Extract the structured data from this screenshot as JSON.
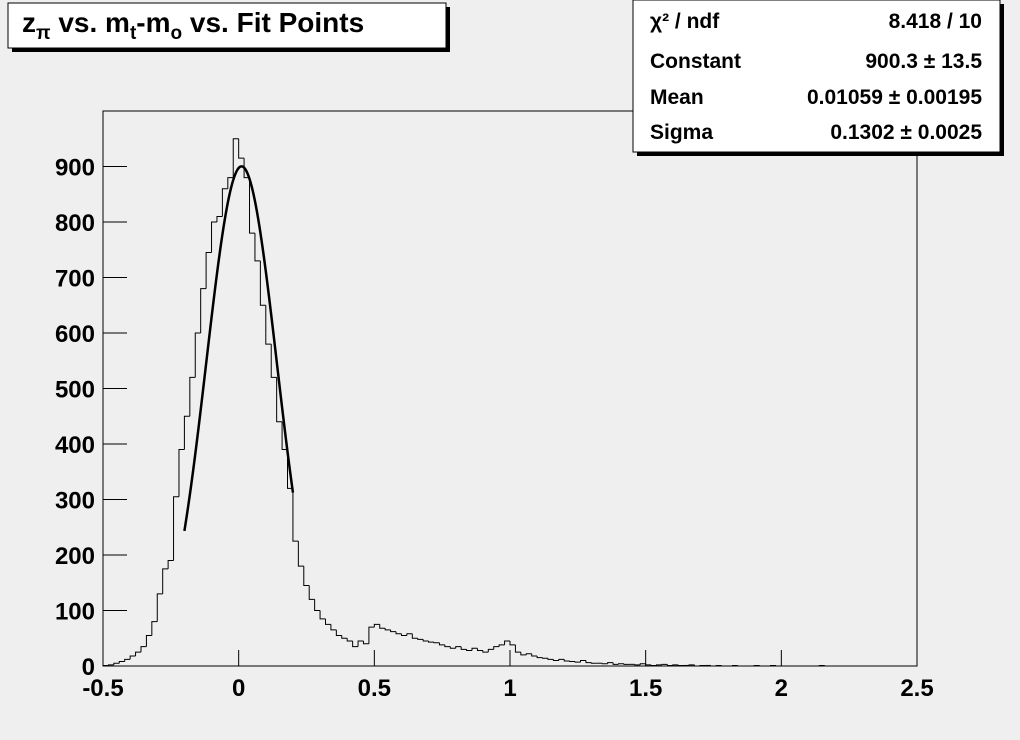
{
  "chart_data": {
    "type": "histogram",
    "title": [
      "z",
      "π",
      " vs. m",
      "t",
      "-m",
      "o",
      " vs. Fit Points"
    ],
    "xlim": [
      -0.5,
      2.5
    ],
    "ylim": [
      0,
      1000
    ],
    "xticks": [
      -0.5,
      0,
      0.5,
      1,
      1.5,
      2,
      2.5
    ],
    "yticks": [
      0,
      100,
      200,
      300,
      400,
      500,
      600,
      700,
      800,
      900
    ],
    "color": "#000000",
    "bins": [
      -0.5,
      -0.48,
      -0.46,
      -0.44,
      -0.42,
      -0.4,
      -0.38,
      -0.36,
      -0.34,
      -0.32,
      -0.3,
      -0.28,
      -0.26,
      -0.24,
      -0.22,
      -0.2,
      -0.18,
      -0.16,
      -0.14,
      -0.12,
      -0.1,
      -0.08,
      -0.06,
      -0.04,
      -0.02,
      0,
      0.02,
      0.04,
      0.06,
      0.08,
      0.1,
      0.12,
      0.14,
      0.16,
      0.18,
      0.2,
      0.22,
      0.24,
      0.26,
      0.28,
      0.3,
      0.32,
      0.34,
      0.36,
      0.38,
      0.4,
      0.42,
      0.44,
      0.46,
      0.48,
      0.5,
      0.52,
      0.54,
      0.56,
      0.58,
      0.6,
      0.62,
      0.64,
      0.66,
      0.68,
      0.7,
      0.72,
      0.74,
      0.76,
      0.78,
      0.8,
      0.82,
      0.84,
      0.86,
      0.88,
      0.9,
      0.92,
      0.94,
      0.96,
      0.98,
      1,
      1.02,
      1.04,
      1.06,
      1.08,
      1.1,
      1.12,
      1.14,
      1.16,
      1.18,
      1.2,
      1.22,
      1.24,
      1.26,
      1.28,
      1.3,
      1.32,
      1.34,
      1.36,
      1.38,
      1.4,
      1.42,
      1.44,
      1.46,
      1.48,
      1.5,
      1.52,
      1.54,
      1.56,
      1.58,
      1.6,
      1.62,
      1.64,
      1.66,
      1.68,
      1.7,
      1.72,
      1.74,
      1.76,
      1.78,
      1.8,
      1.82,
      1.84,
      1.86,
      1.88,
      1.9,
      1.92,
      1.94,
      1.96,
      1.98,
      2,
      2.02,
      2.04,
      2.06,
      2.08,
      2.1,
      2.12,
      2.14,
      2.16,
      2.18,
      2.2,
      2.22,
      2.24,
      2.26,
      2.28,
      2.3,
      2.32,
      2.34,
      2.36,
      2.38,
      2.4,
      2.42,
      2.44,
      2.46,
      2.48,
      2.5
    ],
    "values": [
      1,
      2,
      5,
      8,
      12,
      18,
      25,
      35,
      55,
      80,
      130,
      175,
      190,
      305,
      390,
      450,
      520,
      600,
      680,
      745,
      800,
      810,
      860,
      880,
      950,
      915,
      880,
      780,
      730,
      650,
      580,
      520,
      440,
      390,
      320,
      225,
      180,
      145,
      120,
      100,
      85,
      75,
      65,
      55,
      50,
      45,
      35,
      45,
      40,
      70,
      75,
      68,
      65,
      62,
      58,
      55,
      58,
      50,
      48,
      45,
      43,
      42,
      38,
      35,
      32,
      35,
      30,
      28,
      32,
      28,
      25,
      30,
      35,
      38,
      45,
      38,
      25,
      20,
      22,
      18,
      15,
      14,
      12,
      10,
      12,
      9,
      8,
      7,
      10,
      6,
      5,
      5,
      4,
      6,
      3,
      4,
      3,
      3,
      2,
      4,
      2,
      1,
      2,
      3,
      1,
      2,
      1,
      1,
      2,
      0,
      1,
      1,
      0,
      1,
      0,
      0,
      1,
      0,
      0,
      0,
      1,
      0,
      0,
      1,
      0,
      0,
      0,
      0,
      0,
      0,
      0,
      0,
      1,
      0,
      0,
      0,
      0,
      0,
      0,
      0,
      0,
      0,
      0,
      0,
      0,
      0,
      0,
      0,
      0,
      0
    ],
    "fit_range": [
      -0.2,
      0.2
    ],
    "stats": [
      {
        "label": "χ² / ndf",
        "text": "8.418 / 10"
      },
      {
        "label": "Constant",
        "text": "900.3 ± 13.5",
        "value": 900.3,
        "error": 13.5
      },
      {
        "label": "Mean",
        "text": "0.01059 ± 0.00195",
        "value": 0.01059,
        "error": 0.00195
      },
      {
        "label": "Sigma",
        "text": "0.1302 ± 0.0025",
        "value": 0.1302,
        "error": 0.0025
      }
    ]
  }
}
